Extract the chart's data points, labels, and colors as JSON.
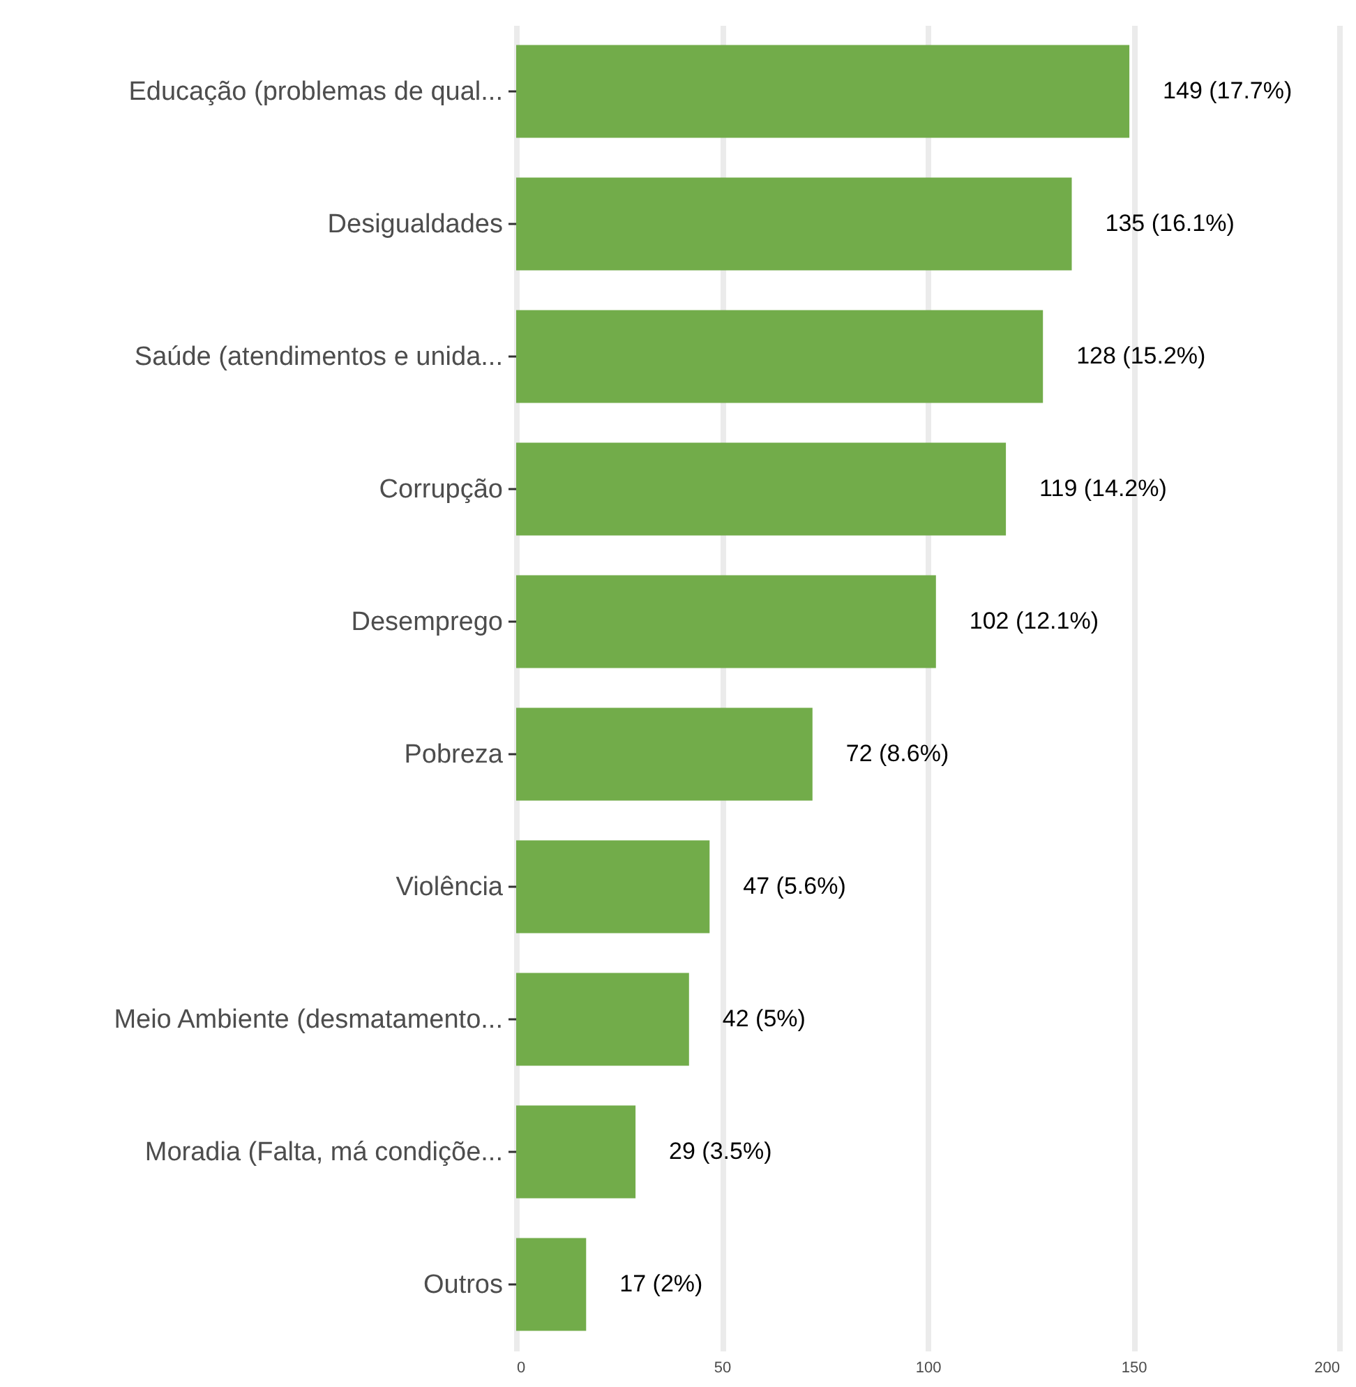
{
  "chart_data": {
    "type": "bar",
    "orientation": "horizontal",
    "categories": [
      "Educação (problemas de qual...",
      "Desigualdades",
      "Saúde (atendimentos e unida...",
      "Corrupção",
      "Desemprego",
      "Pobreza",
      "Violência",
      "Meio Ambiente (desmatamento...",
      "Moradia (Falta, má condiçõe...",
      "Outros"
    ],
    "values": [
      149,
      135,
      128,
      119,
      102,
      72,
      47,
      42,
      29,
      17
    ],
    "value_labels": [
      "149 (17.7%)",
      "135 (16.1%)",
      "128 (15.2%)",
      "119 (14.2%)",
      "102 (12.1%)",
      "72 (8.6%)",
      "47 (5.6%)",
      "42 (5%)",
      "29 (3.5%)",
      "17 (2%)"
    ],
    "color": "#72ac4a",
    "xlim": [
      0,
      200
    ],
    "xticks": [
      0,
      50,
      100,
      150,
      200
    ],
    "grid": "x"
  }
}
